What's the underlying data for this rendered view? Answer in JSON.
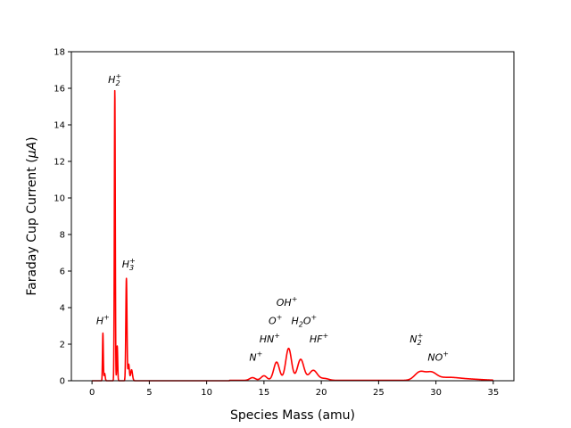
{
  "chart_data": {
    "type": "line",
    "title": "",
    "xlabel": "Species Mass (amu)",
    "ylabel_main": "Faraday Cup Current (",
    "ylabel_unit": "μA",
    "ylabel_close": ")",
    "xlim": [
      -1.8,
      36.8
    ],
    "ylim": [
      0,
      18
    ],
    "xticks": [
      0,
      5,
      10,
      15,
      20,
      25,
      30,
      35
    ],
    "yticks": [
      0,
      2,
      4,
      6,
      8,
      10,
      12,
      14,
      16,
      18
    ],
    "grid": false,
    "series": [
      {
        "name": "Faraday cup current",
        "color": "#ff0000",
        "baseline": 0.02,
        "peaks": [
          {
            "x": 0.95,
            "height": 2.6,
            "width": 0.035
          },
          {
            "x": 1.1,
            "height": 0.4,
            "width": 0.05
          },
          {
            "x": 1.99,
            "height": 15.9,
            "width": 0.04
          },
          {
            "x": 2.2,
            "height": 1.9,
            "width": 0.04
          },
          {
            "x": 3.0,
            "height": 5.6,
            "width": 0.05
          },
          {
            "x": 3.2,
            "height": 0.9,
            "width": 0.06
          },
          {
            "x": 3.45,
            "height": 0.6,
            "width": 0.08
          },
          {
            "x": 14.0,
            "height": 0.15,
            "width": 0.25
          },
          {
            "x": 15.0,
            "height": 0.25,
            "width": 0.25
          },
          {
            "x": 16.1,
            "height": 1.0,
            "width": 0.25
          },
          {
            "x": 17.15,
            "height": 1.75,
            "width": 0.25
          },
          {
            "x": 18.2,
            "height": 1.15,
            "width": 0.28
          },
          {
            "x": 19.3,
            "height": 0.55,
            "width": 0.35
          },
          {
            "x": 20.3,
            "height": 0.1,
            "width": 0.35
          },
          {
            "x": 28.6,
            "height": 0.45,
            "width": 0.45
          },
          {
            "x": 29.6,
            "height": 0.38,
            "width": 0.45
          },
          {
            "x": 31.0,
            "height": 0.15,
            "width": 1.0
          },
          {
            "x": 33.0,
            "height": 0.06,
            "width": 1.2
          }
        ]
      }
    ],
    "annotations": [
      {
        "label": "H",
        "sub": "",
        "sup": "+",
        "x": 0.95,
        "y": 3.1
      },
      {
        "label": "H",
        "sub": "2",
        "sup": "+",
        "x": 1.99,
        "y": 16.3
      },
      {
        "label": "H",
        "sub": "3",
        "sup": "+",
        "x": 3.2,
        "y": 6.2
      },
      {
        "label": "N",
        "sub": "",
        "sup": "+",
        "x": 14.3,
        "y": 1.1
      },
      {
        "label": "HN",
        "sub": "",
        "sup": "+",
        "x": 15.5,
        "y": 2.1
      },
      {
        "label": "O",
        "sub": "",
        "sup": "+",
        "x": 16.0,
        "y": 3.1
      },
      {
        "label": "OH",
        "sub": "",
        "sup": "+",
        "x": 17.0,
        "y": 4.1
      },
      {
        "label": "H",
        "sub": "2",
        "sup": "O",
        "tail": "+",
        "x": 18.5,
        "y": 3.1
      },
      {
        "label": "HF",
        "sub": "",
        "sup": "+",
        "x": 19.8,
        "y": 2.1
      },
      {
        "label": "N",
        "sub": "2",
        "sup": "+",
        "x": 28.3,
        "y": 2.1
      },
      {
        "label": "NO",
        "sub": "",
        "sup": "+",
        "x": 30.2,
        "y": 1.1
      }
    ]
  }
}
